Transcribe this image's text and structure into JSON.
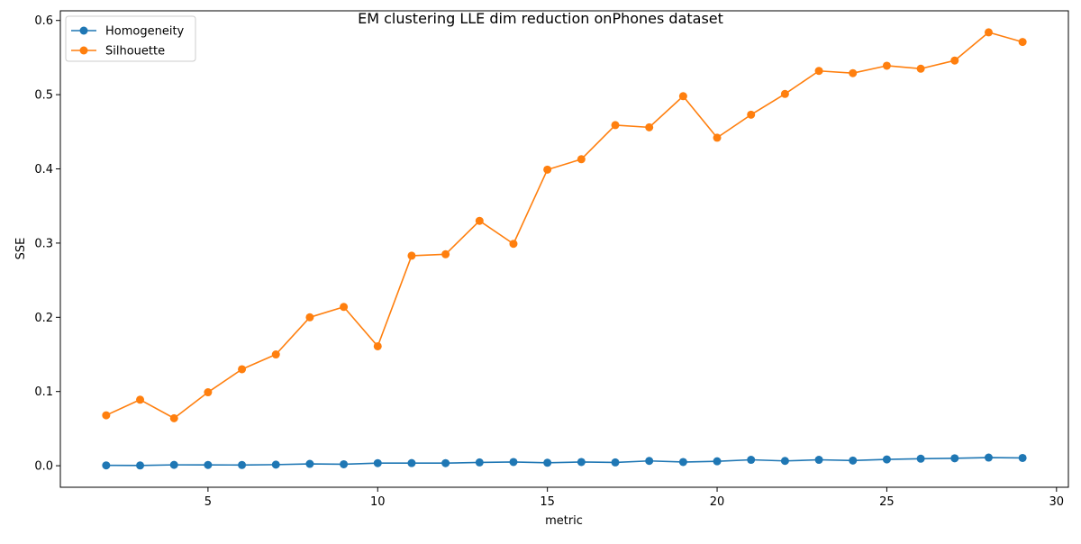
{
  "chart_data": {
    "type": "line",
    "title": "EM clustering LLE dim reduction onPhones dataset",
    "xlabel": "metric",
    "ylabel": "SSE",
    "x": [
      2,
      3,
      4,
      5,
      6,
      7,
      8,
      9,
      10,
      11,
      12,
      13,
      14,
      15,
      16,
      17,
      18,
      19,
      20,
      21,
      22,
      23,
      24,
      25,
      26,
      27,
      28,
      29
    ],
    "series": [
      {
        "name": "Homogeneity",
        "color": "#1f77b4",
        "values": [
          0.0005,
          0.0004,
          0.0012,
          0.0011,
          0.001,
          0.0015,
          0.0025,
          0.002,
          0.0035,
          0.0036,
          0.0035,
          0.0045,
          0.005,
          0.004,
          0.005,
          0.0045,
          0.0065,
          0.005,
          0.006,
          0.008,
          0.0065,
          0.008,
          0.007,
          0.0085,
          0.0095,
          0.01,
          0.011,
          0.0105
        ]
      },
      {
        "name": "Silhouette",
        "color": "#ff7f0e",
        "values": [
          0.068,
          0.089,
          0.064,
          0.099,
          0.13,
          0.15,
          0.2,
          0.214,
          0.161,
          0.283,
          0.285,
          0.33,
          0.299,
          0.399,
          0.413,
          0.459,
          0.456,
          0.498,
          0.442,
          0.473,
          0.501,
          0.532,
          0.529,
          0.539,
          0.535,
          0.546,
          0.584,
          0.571
        ]
      }
    ],
    "xlim": [
      0.65,
      30.35
    ],
    "ylim": [
      -0.029,
      0.613
    ],
    "xticks": [
      5,
      10,
      15,
      20,
      25,
      30
    ],
    "yticks": [
      0.0,
      0.1,
      0.2,
      0.3,
      0.4,
      0.5,
      0.6
    ],
    "xtick_labels": [
      "5",
      "10",
      "15",
      "20",
      "25",
      "30"
    ],
    "ytick_labels": [
      "0.0",
      "0.1",
      "0.2",
      "0.3",
      "0.4",
      "0.5",
      "0.6"
    ],
    "grid": false,
    "legend_position": "upper left"
  }
}
